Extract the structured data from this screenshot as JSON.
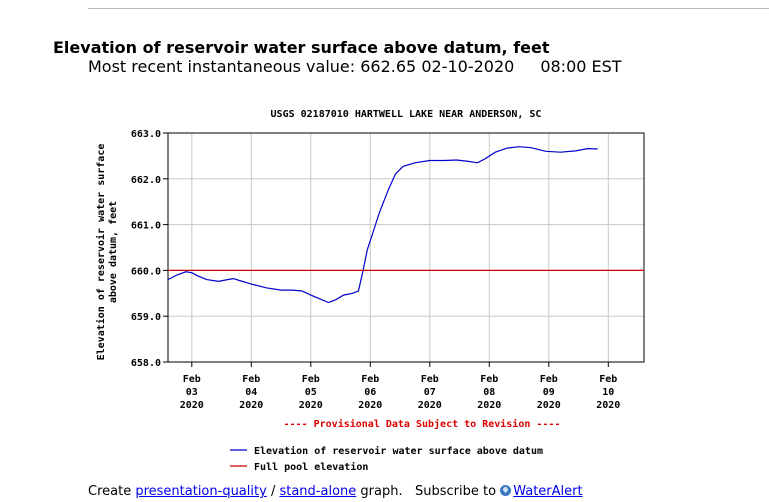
{
  "header": {
    "parameter_title": "Elevation of reservoir water surface above datum, feet",
    "recent_label": "Most recent instantaneous value:",
    "recent_value": "662.65",
    "recent_date": "02-10-2020",
    "recent_time": "08:00 EST"
  },
  "footer": {
    "create_text": "Create",
    "presentation_link": "presentation-quality",
    "separator": "/",
    "standalone_link": "stand-alone",
    "graph_text": "graph.",
    "subscribe_text": "Subscribe to",
    "wateralert_link": "WaterAlert",
    "wateralert_icon": "water-drop-icon"
  },
  "chart_data": {
    "type": "line",
    "title": "USGS 02187010 HARTWELL LAKE NEAR ANDERSON, SC",
    "ylabel_lines": [
      "Elevation of reservoir water surface",
      "above datum, feet"
    ],
    "xlabel": "",
    "ylim": [
      658.0,
      663.0
    ],
    "yticks": [
      "663.0",
      "662.0",
      "661.0",
      "660.0",
      "659.0",
      "658.0"
    ],
    "yticks_values": [
      663,
      662,
      661,
      660,
      659,
      658
    ],
    "xlim": [
      2.6,
      10.6
    ],
    "xticks": [
      {
        "day": 3,
        "label": [
          "Feb",
          "03",
          "2020"
        ]
      },
      {
        "day": 4,
        "label": [
          "Feb",
          "04",
          "2020"
        ]
      },
      {
        "day": 5,
        "label": [
          "Feb",
          "05",
          "2020"
        ]
      },
      {
        "day": 6,
        "label": [
          "Feb",
          "06",
          "2020"
        ]
      },
      {
        "day": 7,
        "label": [
          "Feb",
          "07",
          "2020"
        ]
      },
      {
        "day": 8,
        "label": [
          "Feb",
          "08",
          "2020"
        ]
      },
      {
        "day": 9,
        "label": [
          "Feb",
          "09",
          "2020"
        ]
      },
      {
        "day": 10,
        "label": [
          "Feb",
          "10",
          "2020"
        ]
      }
    ],
    "grid": true,
    "provisional_note": "---- Provisional Data Subject to Revision ----",
    "series": [
      {
        "name": "Elevation of reservoir water surface above datum",
        "color": "#0000cc",
        "points": [
          [
            2.6,
            659.8
          ],
          [
            2.75,
            659.9
          ],
          [
            2.9,
            659.97
          ],
          [
            3.0,
            659.95
          ],
          [
            3.1,
            659.88
          ],
          [
            3.25,
            659.8
          ],
          [
            3.45,
            659.76
          ],
          [
            3.6,
            659.8
          ],
          [
            3.7,
            659.82
          ],
          [
            3.8,
            659.78
          ],
          [
            4.0,
            659.7
          ],
          [
            4.25,
            659.62
          ],
          [
            4.5,
            659.57
          ],
          [
            4.7,
            659.57
          ],
          [
            4.85,
            659.55
          ],
          [
            5.0,
            659.46
          ],
          [
            5.15,
            659.38
          ],
          [
            5.3,
            659.3
          ],
          [
            5.42,
            659.36
          ],
          [
            5.55,
            659.46
          ],
          [
            5.7,
            659.5
          ],
          [
            5.8,
            659.55
          ],
          [
            5.87,
            659.95
          ],
          [
            5.95,
            660.45
          ],
          [
            6.05,
            660.85
          ],
          [
            6.15,
            661.25
          ],
          [
            6.3,
            661.75
          ],
          [
            6.42,
            662.1
          ],
          [
            6.55,
            662.27
          ],
          [
            6.75,
            662.35
          ],
          [
            7.0,
            662.4
          ],
          [
            7.25,
            662.4
          ],
          [
            7.45,
            662.41
          ],
          [
            7.65,
            662.38
          ],
          [
            7.8,
            662.35
          ],
          [
            7.92,
            662.43
          ],
          [
            8.1,
            662.58
          ],
          [
            8.3,
            662.67
          ],
          [
            8.5,
            662.7
          ],
          [
            8.7,
            662.68
          ],
          [
            8.95,
            662.6
          ],
          [
            9.2,
            662.58
          ],
          [
            9.45,
            662.61
          ],
          [
            9.65,
            662.66
          ],
          [
            9.82,
            662.65
          ]
        ]
      },
      {
        "name": "Full pool elevation",
        "color": "#cc0000",
        "points": [
          [
            2.6,
            660.0
          ],
          [
            10.6,
            660.0
          ]
        ]
      }
    ],
    "colors": {
      "series": "#0000cc",
      "full_pool": "#cc0000",
      "grid": "#c8c8c8",
      "note": "#dd0000"
    }
  }
}
